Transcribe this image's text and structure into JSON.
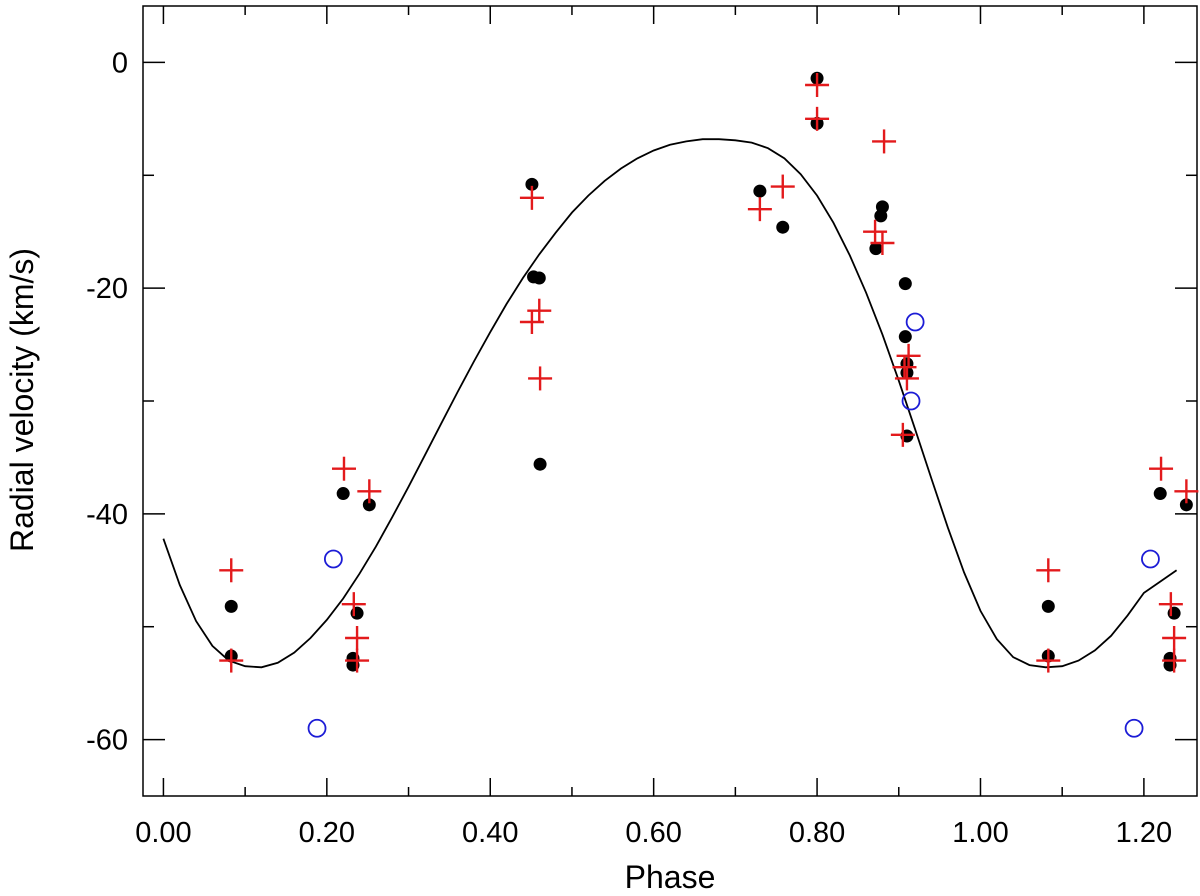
{
  "chart_data": {
    "type": "scatter",
    "title": "",
    "xlabel": "Phase",
    "ylabel": "Radial velocity (km/s)",
    "xlim": [
      -0.025,
      1.265
    ],
    "ylim": [
      -65,
      5
    ],
    "x_ticks": [
      0.0,
      0.2,
      0.4,
      0.6,
      0.8,
      1.0,
      1.2
    ],
    "x_tick_labels": [
      "0.00",
      "0.20",
      "0.40",
      "0.60",
      "0.80",
      "1.00",
      "1.20"
    ],
    "x_minor_ticks": [
      0.1,
      0.3,
      0.5,
      0.7,
      0.9,
      1.1
    ],
    "y_ticks": [
      0,
      -20,
      -40,
      -60
    ],
    "y_tick_labels": [
      "0",
      "-20",
      "-40",
      "-60"
    ],
    "y_minor_ticks": [
      -10,
      -30,
      -50
    ],
    "grid": false,
    "legend": "none",
    "colors": {
      "filled": "#000000",
      "cross": "#e31a1c",
      "open": "#1c1cd6",
      "curve": "#000000",
      "axis": "#000000"
    },
    "fit_curve": {
      "name": "orbital solution",
      "x": [
        0.0,
        0.02,
        0.04,
        0.06,
        0.08,
        0.1,
        0.12,
        0.14,
        0.16,
        0.18,
        0.2,
        0.22,
        0.24,
        0.26,
        0.28,
        0.3,
        0.32,
        0.34,
        0.36,
        0.38,
        0.4,
        0.42,
        0.44,
        0.46,
        0.48,
        0.5,
        0.52,
        0.54,
        0.56,
        0.58,
        0.6,
        0.62,
        0.64,
        0.66,
        0.68,
        0.7,
        0.72,
        0.74,
        0.76,
        0.78,
        0.8,
        0.82,
        0.84,
        0.86,
        0.88,
        0.9,
        0.92,
        0.94,
        0.96,
        0.98,
        1.0,
        1.02,
        1.04,
        1.06,
        1.08,
        1.1,
        1.12,
        1.14,
        1.16,
        1.18,
        1.2,
        1.22,
        1.24
      ],
      "y": [
        -42.2,
        -46.3,
        -49.5,
        -51.7,
        -53.0,
        -53.5,
        -53.6,
        -53.2,
        -52.3,
        -51.0,
        -49.4,
        -47.5,
        -45.3,
        -42.9,
        -40.3,
        -37.6,
        -34.8,
        -32.0,
        -29.2,
        -26.5,
        -23.9,
        -21.4,
        -19.1,
        -17.0,
        -15.1,
        -13.3,
        -11.8,
        -10.5,
        -9.4,
        -8.5,
        -7.8,
        -7.3,
        -7.0,
        -6.8,
        -6.8,
        -6.9,
        -7.1,
        -7.6,
        -8.5,
        -9.9,
        -11.8,
        -14.2,
        -17.1,
        -20.4,
        -24.1,
        -28.2,
        -32.5,
        -36.9,
        -41.2,
        -45.2,
        -48.6,
        -51.1,
        -52.7,
        -53.4,
        -53.6,
        -53.5,
        -53.0,
        -52.1,
        -50.8,
        -49.0,
        -47.0,
        -46.0,
        -45.0
      ]
    },
    "series": [
      {
        "name": "filled circles",
        "marker": "filled-circle",
        "points": [
          [
            0.083,
            -48.2
          ],
          [
            0.083,
            -52.6
          ],
          [
            0.22,
            -38.2
          ],
          [
            0.232,
            -52.8
          ],
          [
            0.232,
            -53.4
          ],
          [
            0.237,
            -48.8
          ],
          [
            0.252,
            -39.2
          ],
          [
            0.451,
            -10.8
          ],
          [
            0.453,
            -19.0
          ],
          [
            0.46,
            -19.1
          ],
          [
            0.461,
            -35.6
          ],
          [
            0.73,
            -11.4
          ],
          [
            0.758,
            -14.6
          ],
          [
            0.8,
            -1.4
          ],
          [
            0.8,
            -5.4
          ],
          [
            0.872,
            -16.5
          ],
          [
            0.878,
            -13.6
          ],
          [
            0.88,
            -12.8
          ],
          [
            0.908,
            -19.6
          ],
          [
            0.908,
            -24.3
          ],
          [
            0.91,
            -26.7
          ],
          [
            0.91,
            -27.5
          ],
          [
            0.91,
            -33.1
          ],
          [
            1.083,
            -48.2
          ],
          [
            1.083,
            -52.6
          ],
          [
            1.22,
            -38.2
          ],
          [
            1.232,
            -52.8
          ],
          [
            1.232,
            -53.4
          ],
          [
            1.237,
            -48.8
          ],
          [
            1.252,
            -39.2
          ]
        ]
      },
      {
        "name": "crosses",
        "marker": "cross",
        "points": [
          [
            0.083,
            -45.0
          ],
          [
            0.083,
            -53.0
          ],
          [
            0.221,
            -36.0
          ],
          [
            0.233,
            -48.0
          ],
          [
            0.237,
            -51.0
          ],
          [
            0.237,
            -53.0
          ],
          [
            0.252,
            -38.0
          ],
          [
            0.451,
            -12.0
          ],
          [
            0.451,
            -23.0
          ],
          [
            0.46,
            -22.0
          ],
          [
            0.461,
            -28.0
          ],
          [
            0.73,
            -13.0
          ],
          [
            0.758,
            -11.0
          ],
          [
            0.8,
            -2.0
          ],
          [
            0.8,
            -5.0
          ],
          [
            0.871,
            -15.0
          ],
          [
            0.88,
            -16.0
          ],
          [
            0.882,
            -7.0
          ],
          [
            0.905,
            -33.0
          ],
          [
            0.907,
            -27.0
          ],
          [
            0.91,
            -28.0
          ],
          [
            0.912,
            -26.0
          ],
          [
            1.083,
            -45.0
          ],
          [
            1.083,
            -53.0
          ],
          [
            1.221,
            -36.0
          ],
          [
            1.233,
            -48.0
          ],
          [
            1.237,
            -51.0
          ],
          [
            1.237,
            -53.0
          ],
          [
            1.252,
            -38.0
          ]
        ]
      },
      {
        "name": "open circles",
        "marker": "open-circle",
        "points": [
          [
            0.188,
            -59.0
          ],
          [
            0.208,
            -44.0
          ],
          [
            0.915,
            -30.0
          ],
          [
            0.92,
            -23.0
          ],
          [
            1.188,
            -59.0
          ],
          [
            1.208,
            -44.0
          ]
        ]
      }
    ]
  }
}
